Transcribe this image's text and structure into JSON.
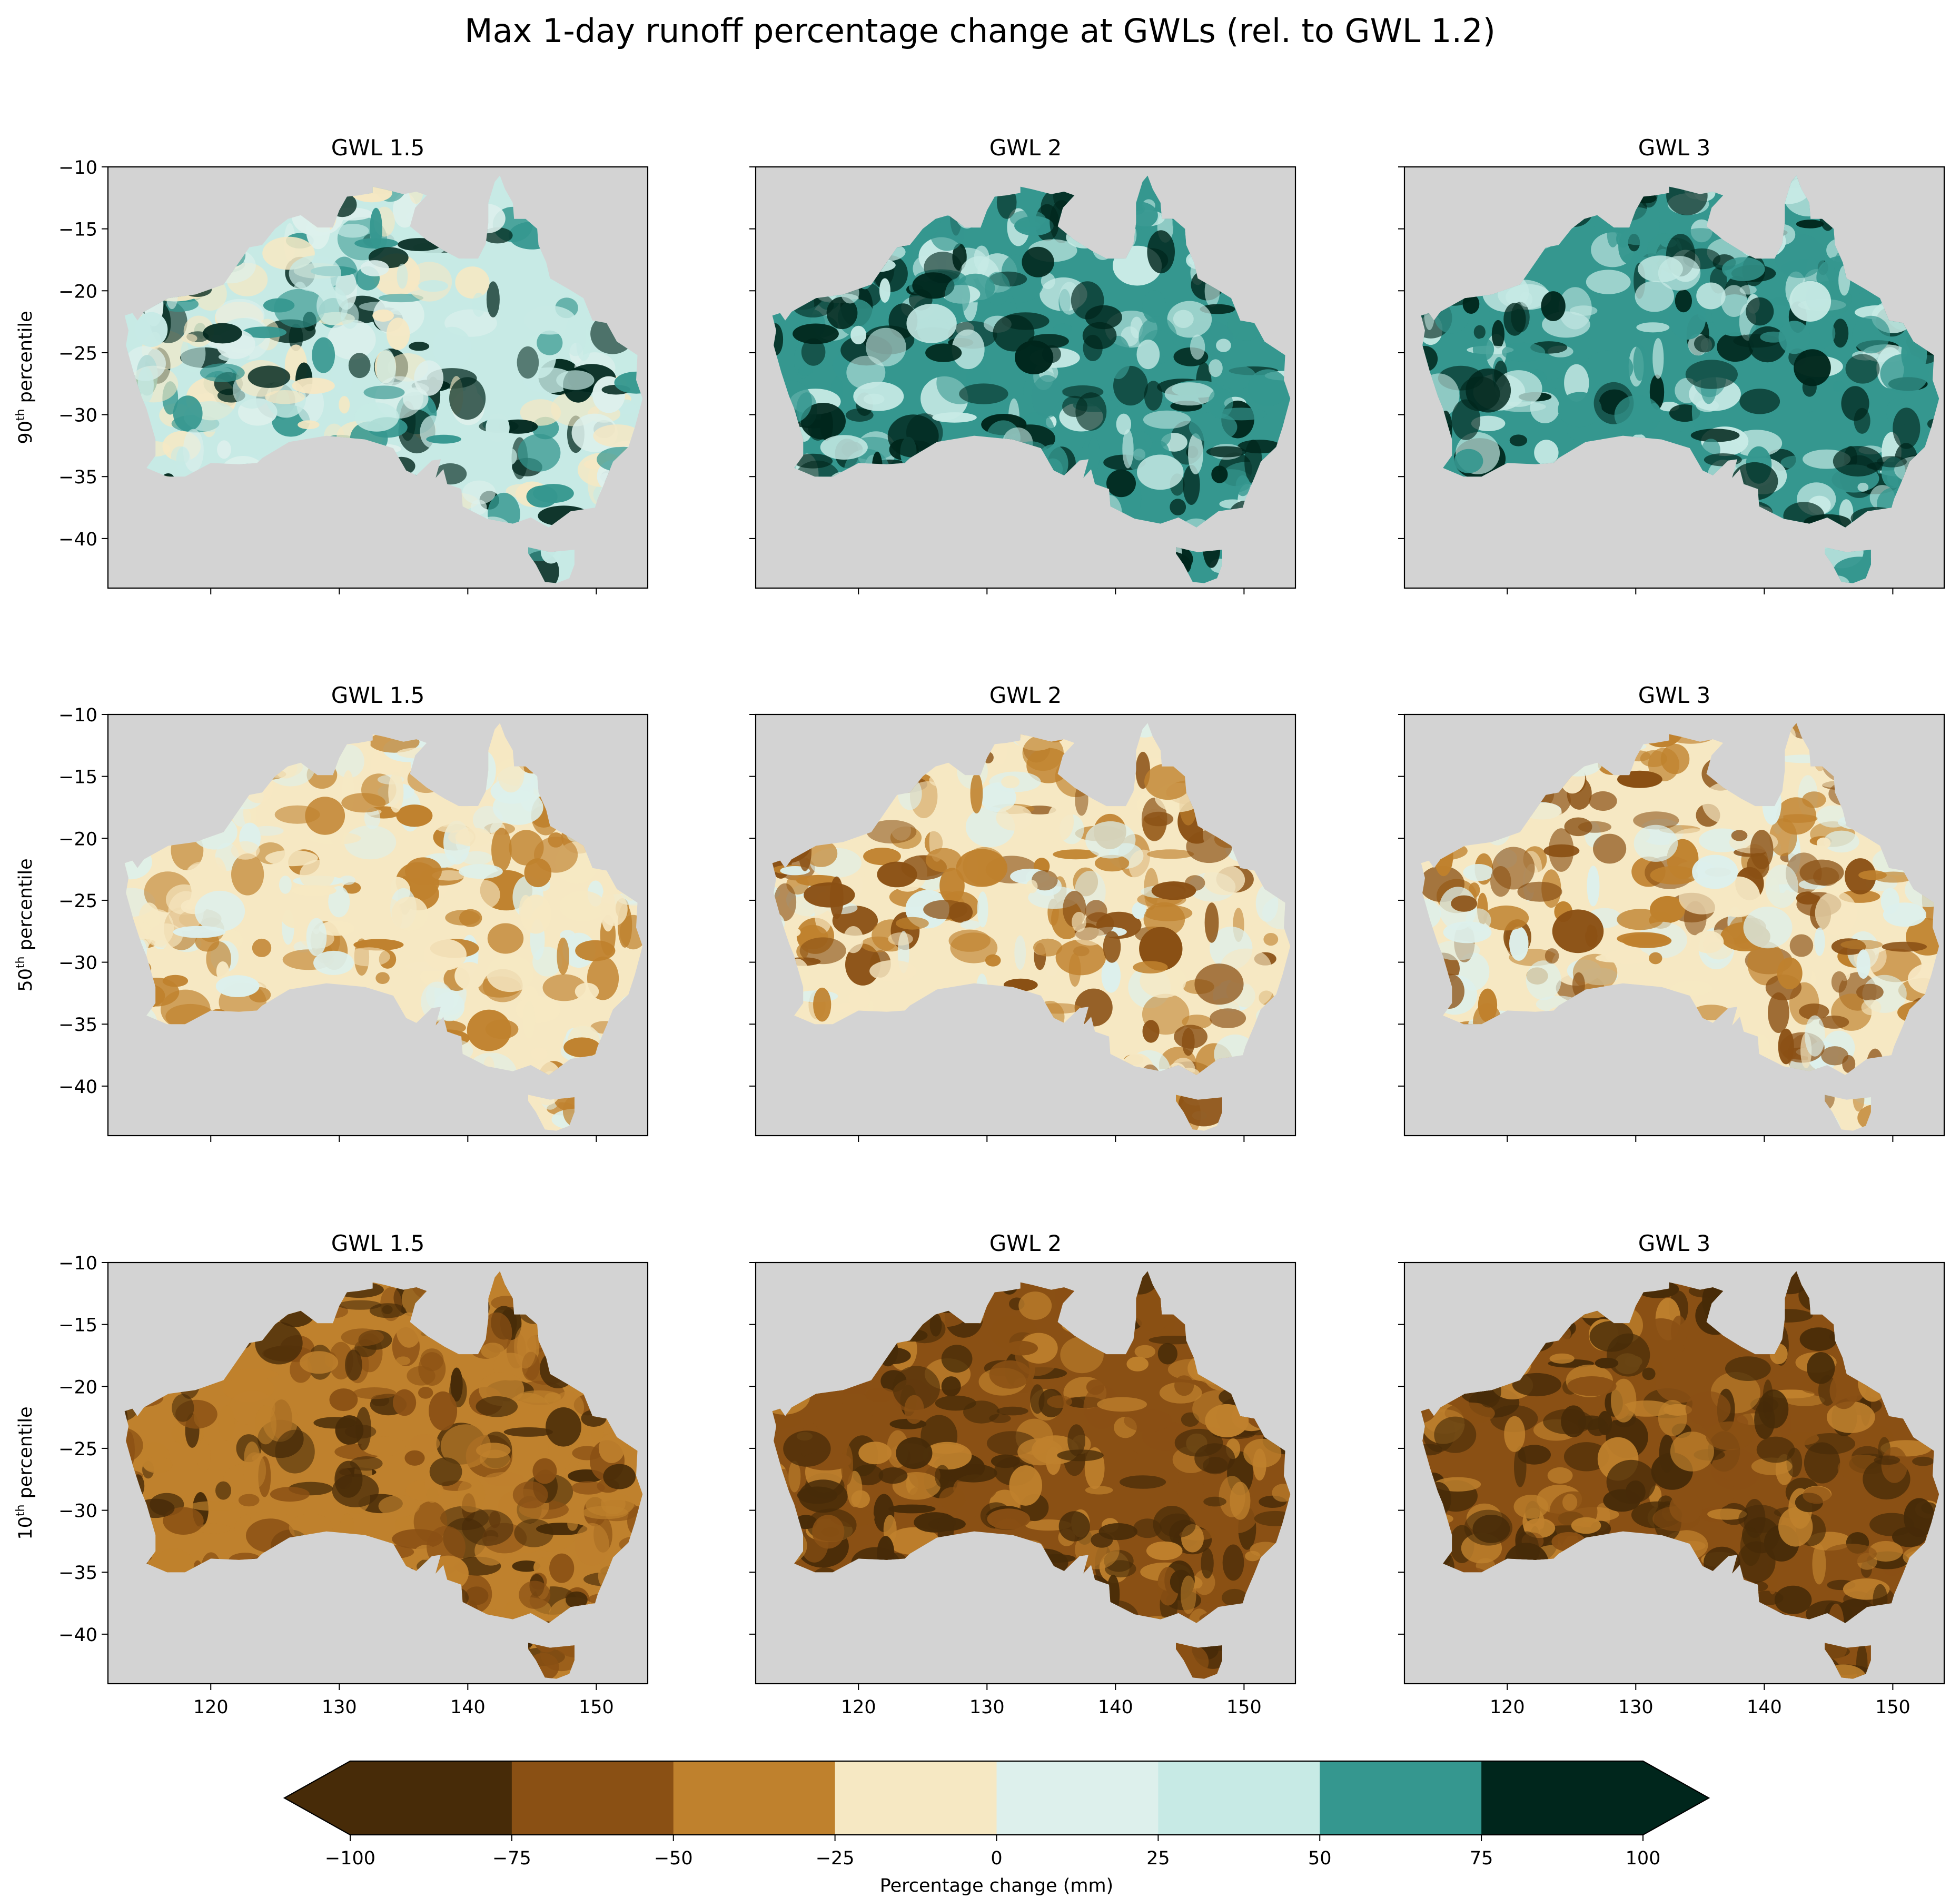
{
  "figure": {
    "title": "Max 1-day runoff percentage change at GWLs (rel. to GWL 1.2)"
  },
  "chart_data": {
    "type": "heatmap",
    "description_of_values": "Gridded percentage change of maximum 1-day runoff over Australia; 3 rows (percentiles) x 3 columns (global warming levels).",
    "xlim": [
      112,
      154
    ],
    "ylim": [
      -44,
      -10
    ],
    "xticks": [
      120,
      130,
      140,
      150
    ],
    "yticks": [
      -10,
      -15,
      -20,
      -25,
      -30,
      -35,
      -40
    ],
    "ocean_color": "#d3d3d3",
    "rows": [
      {
        "label": "90",
        "label_sup": "th",
        "label_suffix": " percentile",
        "panels": [
          {
            "title": "GWL 1.5",
            "dominant_bins": [
              0,
              25,
              50,
              75,
              100
            ],
            "mean_change": 35
          },
          {
            "title": "GWL 2",
            "dominant_bins": [
              50,
              75,
              100
            ],
            "mean_change": 60
          },
          {
            "title": "GWL 3",
            "dominant_bins": [
              50,
              75,
              100
            ],
            "mean_change": 65
          }
        ]
      },
      {
        "label": "50",
        "label_sup": "th",
        "label_suffix": " percentile",
        "panels": [
          {
            "title": "GWL 1.5",
            "dominant_bins": [
              -25,
              0,
              25
            ],
            "mean_change": -2
          },
          {
            "title": "GWL 2",
            "dominant_bins": [
              -50,
              -25,
              0,
              25
            ],
            "mean_change": -12
          },
          {
            "title": "GWL 3",
            "dominant_bins": [
              -50,
              -25,
              0,
              25
            ],
            "mean_change": -10
          }
        ]
      },
      {
        "label": "10",
        "label_sup": "th",
        "label_suffix": " percentile",
        "panels": [
          {
            "title": "GWL 1.5",
            "dominant_bins": [
              -75,
              -50,
              -25
            ],
            "mean_change": -35
          },
          {
            "title": "GWL 2",
            "dominant_bins": [
              -100,
              -75,
              -50,
              -25
            ],
            "mean_change": -55
          },
          {
            "title": "GWL 3",
            "dominant_bins": [
              -100,
              -75,
              -50,
              -25
            ],
            "mean_change": -60
          }
        ]
      }
    ],
    "colorbar": {
      "label": "Percentage change (mm)",
      "boundaries": [
        -100,
        -75,
        -50,
        -25,
        0,
        25,
        50,
        75,
        100
      ],
      "tick_labels": [
        "−100",
        "−75",
        "−50",
        "−25",
        "0",
        "25",
        "50",
        "75",
        "100"
      ],
      "colors": [
        "#472b08",
        "#8a5014",
        "#bf812d",
        "#f6e8c3",
        "#ddf0ec",
        "#c7eae5",
        "#35978f",
        "#00261c"
      ],
      "extend": "both"
    }
  }
}
